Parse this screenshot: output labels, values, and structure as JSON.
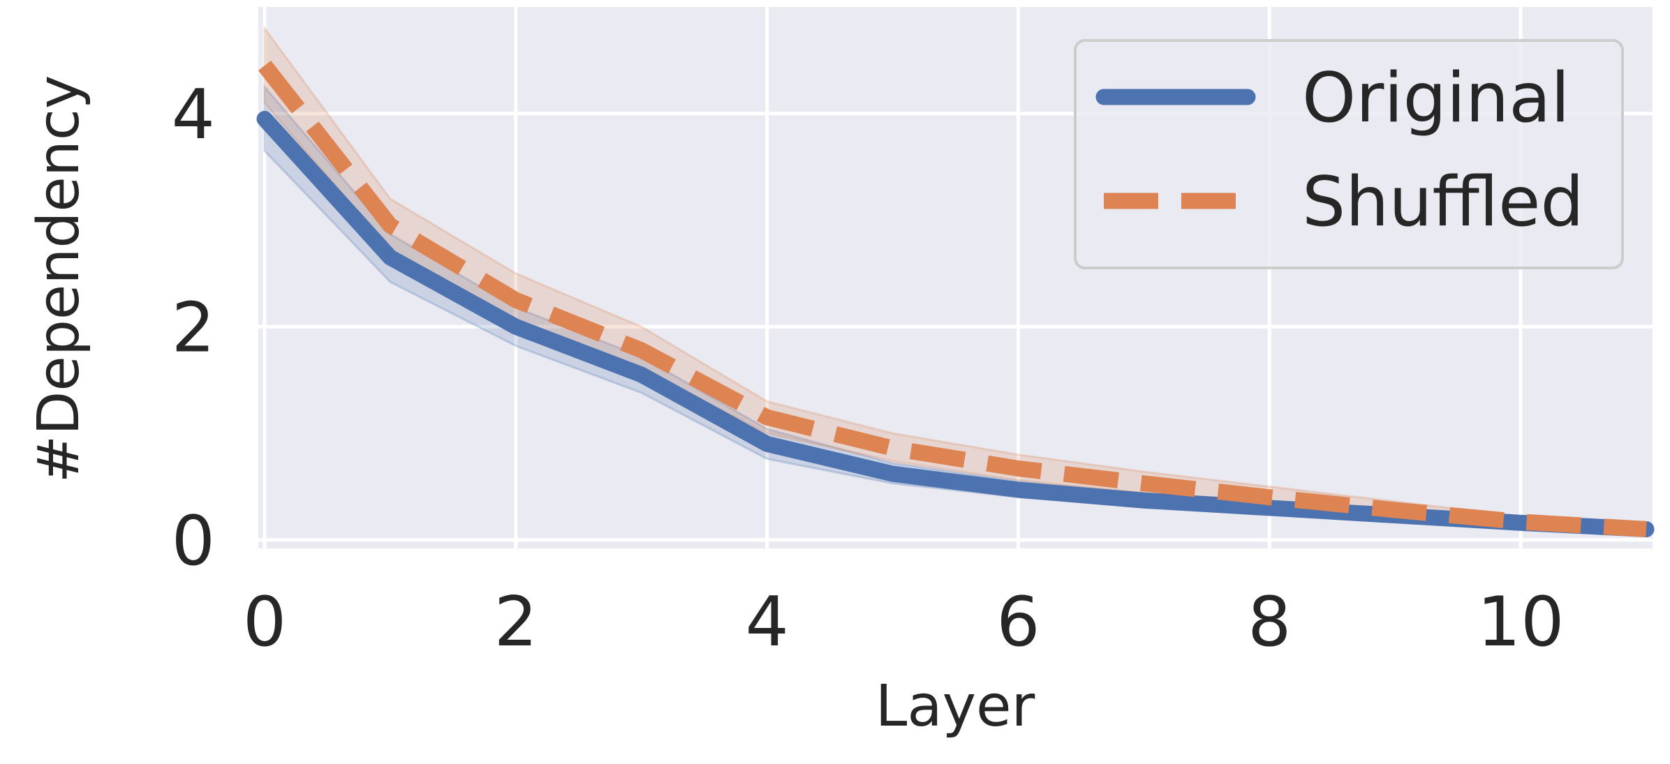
{
  "chart_data": {
    "type": "line",
    "title": "",
    "xlabel": "Layer",
    "ylabel": "#Dependency",
    "xlim": [
      -0.05,
      11.05
    ],
    "ylim": [
      -0.08,
      5.0
    ],
    "xticks": [
      0,
      2,
      4,
      6,
      8,
      10
    ],
    "yticks": [
      0,
      2,
      4
    ],
    "grid": true,
    "legend_position": "top-right",
    "x": [
      0,
      1,
      2,
      3,
      4,
      5,
      6,
      7,
      8,
      9,
      10,
      11
    ],
    "series": [
      {
        "name": "Original",
        "color": "#4c72b0",
        "style": "solid",
        "values": [
          3.95,
          2.65,
          2.0,
          1.55,
          0.9,
          0.62,
          0.47,
          0.37,
          0.3,
          0.23,
          0.16,
          0.1
        ],
        "lower": [
          3.65,
          2.42,
          1.82,
          1.38,
          0.76,
          0.53,
          0.4,
          0.31,
          0.25,
          0.19,
          0.13,
          0.07
        ],
        "upper": [
          4.25,
          2.87,
          2.18,
          1.72,
          1.04,
          0.72,
          0.55,
          0.43,
          0.36,
          0.27,
          0.19,
          0.13
        ]
      },
      {
        "name": "Shuffled",
        "color": "#dd8452",
        "style": "dashed",
        "values": [
          4.45,
          2.95,
          2.25,
          1.78,
          1.15,
          0.86,
          0.67,
          0.53,
          0.4,
          0.28,
          0.17,
          0.1
        ],
        "lower": [
          4.1,
          2.72,
          2.05,
          1.6,
          1.0,
          0.74,
          0.56,
          0.44,
          0.32,
          0.22,
          0.13,
          0.07
        ],
        "upper": [
          4.8,
          3.2,
          2.5,
          2.0,
          1.3,
          1.0,
          0.8,
          0.64,
          0.5,
          0.36,
          0.22,
          0.14
        ]
      }
    ]
  }
}
